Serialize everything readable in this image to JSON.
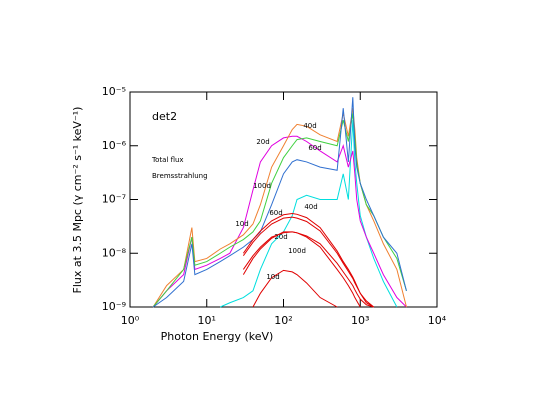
{
  "chart_data": {
    "type": "line",
    "xlabel": "Photon Energy (keV)",
    "ylabel": "Flux at 3.5 Mpc (γ cm⁻² s⁻¹ keV⁻¹)",
    "annotations": [
      {
        "text": "det2",
        "color": "#000000"
      },
      {
        "text": "Total flux",
        "color": "#000000"
      },
      {
        "text": "Bremsstrahlung",
        "color": "#e00000"
      }
    ],
    "xscale": "log",
    "yscale": "log",
    "xlim": [
      1,
      10000
    ],
    "ylim": [
      1e-09,
      1e-05
    ],
    "xticks": [
      {
        "value": 1,
        "label": "10⁰"
      },
      {
        "value": 10,
        "label": "10¹"
      },
      {
        "value": 100,
        "label": "10²"
      },
      {
        "value": 1000,
        "label": "10³"
      },
      {
        "value": 10000,
        "label": "10⁴"
      }
    ],
    "yticks": [
      {
        "value": 1e-09,
        "label": "10⁻⁹"
      },
      {
        "value": 1e-08,
        "label": "10⁻⁸"
      },
      {
        "value": 1e-07,
        "label": "10⁻⁷"
      },
      {
        "value": 1e-06,
        "label": "10⁻⁶"
      },
      {
        "value": 1e-05,
        "label": "10⁻⁵"
      }
    ],
    "x": [
      2,
      3,
      5,
      6.4,
      7,
      10,
      15,
      20,
      30,
      40,
      50,
      70,
      100,
      130,
      150,
      200,
      300,
      500,
      600,
      700,
      800,
      850,
      900,
      1000,
      1200,
      1500,
      2000,
      3000,
      4000
    ],
    "series": [
      {
        "name": "10d",
        "color": "#00dede",
        "values": [
          null,
          null,
          null,
          null,
          null,
          null,
          1e-09,
          1.2e-09,
          1.5e-09,
          2e-09,
          5e-09,
          1.5e-08,
          2.5e-08,
          5e-08,
          1e-07,
          1.2e-07,
          1e-07,
          1e-07,
          3e-07,
          1e-07,
          3e-06,
          5e-07,
          2e-07,
          5e-08,
          2e-08,
          8e-09,
          3e-09,
          1e-09,
          null
        ]
      },
      {
        "name": "20d",
        "color": "#e000e0",
        "values": [
          1e-09,
          2e-09,
          4e-09,
          2e-08,
          5e-09,
          6e-09,
          8e-09,
          1e-08,
          3e-08,
          1.5e-07,
          5e-07,
          1e-06,
          1.4e-06,
          1.5e-06,
          1.5e-06,
          1.2e-06,
          8e-07,
          5e-07,
          1e-06,
          4e-07,
          8e-07,
          3e-07,
          1e-07,
          4e-08,
          2e-08,
          1e-08,
          4e-09,
          1.5e-09,
          1e-09
        ]
      },
      {
        "name": "40d",
        "color": "#f08030",
        "values": [
          1e-09,
          2.5e-09,
          5e-09,
          3e-08,
          7e-09,
          8e-09,
          1.2e-08,
          1.5e-08,
          2.2e-08,
          3.5e-08,
          8e-08,
          4e-07,
          1e-06,
          2e-06,
          2.5e-06,
          2.3e-06,
          1.6e-06,
          1.2e-06,
          4e-06,
          1.5e-06,
          5e-06,
          2e-06,
          6e-07,
          2e-07,
          8e-08,
          4e-08,
          1.5e-08,
          5e-09,
          1e-09
        ]
      },
      {
        "name": "60d",
        "color": "#40d040",
        "values": [
          1e-09,
          2e-09,
          5e-09,
          2e-08,
          6e-09,
          7e-09,
          1e-08,
          1.3e-08,
          1.8e-08,
          2.5e-08,
          4e-08,
          2e-07,
          6e-07,
          1e-06,
          1.3e-06,
          1.4e-06,
          1.2e-06,
          1e-06,
          3e-06,
          1.2e-06,
          4e-06,
          1.5e-06,
          5e-07,
          2e-07,
          8e-08,
          5e-08,
          2e-08,
          8e-09,
          2e-09
        ]
      },
      {
        "name": "100d",
        "color": "#3070d0",
        "values": [
          1e-09,
          1.5e-09,
          3e-09,
          1.5e-08,
          4e-09,
          5e-09,
          7e-09,
          9e-09,
          1.3e-08,
          1.8e-08,
          2.5e-08,
          8e-08,
          3e-07,
          5e-07,
          5.5e-07,
          5e-07,
          4e-07,
          3.5e-07,
          5e-06,
          5e-07,
          8e-06,
          1e-06,
          4e-07,
          2e-07,
          1e-07,
          5e-08,
          2e-08,
          1e-08,
          2e-09
        ]
      },
      {
        "name": "10d",
        "color": "#e00000",
        "values": [
          null,
          null,
          null,
          null,
          null,
          null,
          null,
          null,
          null,
          1e-09,
          1.8e-09,
          3.5e-09,
          4.8e-09,
          4.5e-09,
          4e-09,
          2.8e-09,
          1.5e-09,
          1e-09,
          null,
          null,
          null,
          null,
          null,
          null,
          null,
          null,
          null,
          null,
          null
        ]
      },
      {
        "name": "20d",
        "color": "#e00000",
        "values": [
          null,
          null,
          null,
          null,
          null,
          null,
          null,
          null,
          4e-09,
          8e-09,
          1.2e-08,
          1.9e-08,
          2.5e-08,
          2.5e-08,
          2.4e-08,
          2e-08,
          1.3e-08,
          5e-09,
          3.5e-09,
          2.5e-09,
          1.8e-09,
          1.5e-09,
          1.3e-09,
          1e-09,
          null,
          null,
          null,
          null,
          null
        ]
      },
      {
        "name": "40d",
        "color": "#e00000",
        "values": [
          null,
          null,
          null,
          null,
          null,
          null,
          null,
          null,
          1e-08,
          1.8e-08,
          2.6e-08,
          4e-08,
          5.2e-08,
          5.5e-08,
          5.3e-08,
          4.6e-08,
          3e-08,
          1.1e-08,
          7e-09,
          5e-09,
          3.6e-09,
          3e-09,
          2.5e-09,
          1.8e-09,
          1.2e-09,
          1e-09,
          null,
          null,
          null
        ]
      },
      {
        "name": "60d",
        "color": "#e00000",
        "values": [
          null,
          null,
          null,
          null,
          null,
          null,
          null,
          null,
          9e-09,
          1.6e-08,
          2.3e-08,
          3.5e-08,
          4.5e-08,
          4.7e-08,
          4.5e-08,
          3.9e-08,
          2.6e-08,
          1e-08,
          6.5e-09,
          4.6e-09,
          3.4e-09,
          2.8e-09,
          2.4e-09,
          1.8e-09,
          1.3e-09,
          1e-09,
          null,
          null,
          null
        ]
      },
      {
        "name": "100d",
        "color": "#e00000",
        "values": [
          null,
          null,
          null,
          null,
          null,
          null,
          null,
          null,
          5e-09,
          9e-09,
          1.3e-08,
          2e-08,
          2.4e-08,
          2.5e-08,
          2.4e-08,
          2.1e-08,
          1.5e-08,
          6.5e-09,
          4.5e-09,
          3.3e-09,
          2.5e-09,
          2.1e-09,
          1.8e-09,
          1.4e-09,
          1.1e-09,
          1e-09,
          null,
          null,
          null
        ]
      }
    ]
  }
}
